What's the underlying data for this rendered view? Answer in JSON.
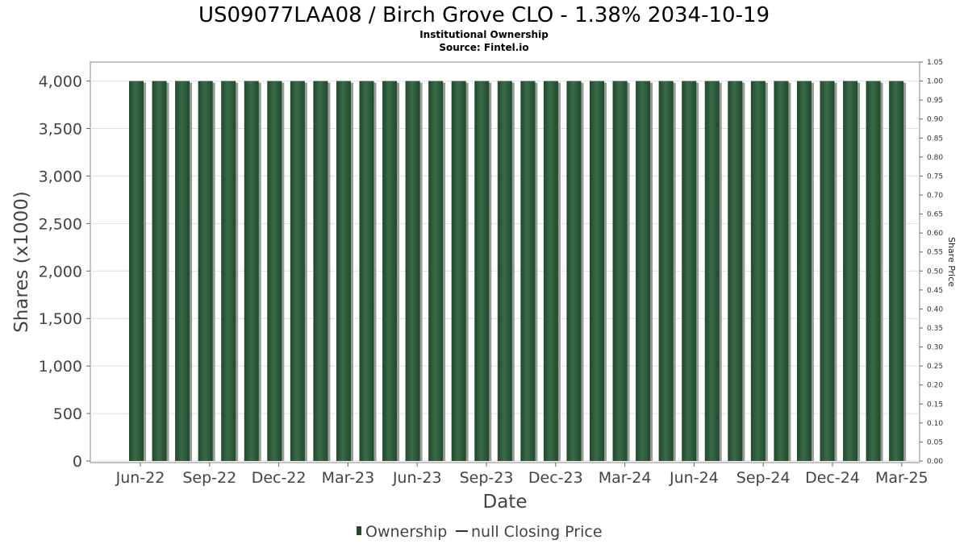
{
  "title": "US09077LAA08 / Birch Grove CLO - 1.38% 2034-10-19",
  "subtitle_line1": "Institutional Ownership",
  "subtitle_line2": "Source: Fintel.io",
  "colors": {
    "bar": "#1f4a2c",
    "bar_highlight": "#3a6a47",
    "bar_shadow": "#9a9a9a",
    "grid": "#e0e0e0",
    "plot_border": "#888888"
  },
  "legend": {
    "ownership": "Ownership",
    "price": "null Closing Price"
  },
  "chart_data": {
    "type": "bar",
    "xlabel": "Date",
    "ylabel": "Shares (x1000)",
    "y2label": "Share Price",
    "ylim": [
      0,
      4200
    ],
    "y2lim": [
      0,
      1.05
    ],
    "y_ticks": [
      "0",
      "500",
      "1,000",
      "1,500",
      "2,000",
      "2,500",
      "3,000",
      "3,500",
      "4,000"
    ],
    "y2_ticks": [
      "0.00",
      "0.05",
      "0.10",
      "0.15",
      "0.20",
      "0.25",
      "0.30",
      "0.35",
      "0.40",
      "0.45",
      "0.50",
      "0.55",
      "0.60",
      "0.65",
      "0.70",
      "0.75",
      "0.80",
      "0.85",
      "0.90",
      "0.95",
      "1.00",
      "1.05"
    ],
    "x_ticks": [
      "Jun-22",
      "Sep-22",
      "Dec-22",
      "Mar-23",
      "Jun-23",
      "Sep-23",
      "Dec-23",
      "Mar-24",
      "Jun-24",
      "Sep-24",
      "Dec-24",
      "Mar-25"
    ],
    "grid": true,
    "legend_position": "bottom",
    "series": [
      {
        "name": "Ownership",
        "values": [
          4000,
          4000,
          4000,
          4000,
          4000,
          4000,
          4000,
          4000,
          4000,
          4000,
          4000,
          4000,
          4000,
          4000,
          4000,
          4000,
          4000,
          4000,
          4000,
          4000,
          4000,
          4000,
          4000,
          4000,
          4000,
          4000,
          4000,
          4000,
          4000,
          4000,
          4000,
          4000,
          4000,
          4000
        ]
      }
    ]
  }
}
